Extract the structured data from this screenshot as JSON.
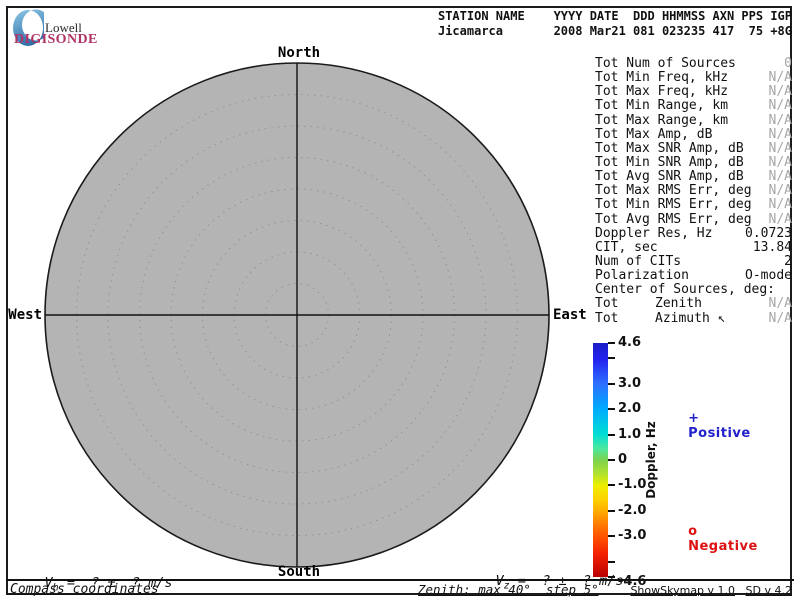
{
  "logo": {
    "top": "Lowell",
    "bottom": "DIGISONDE"
  },
  "header": {
    "line1": "STATION NAME    YYYY DATE  DDD HHMMSS AXN PPS IGP",
    "line2": "Jicamarca       2008 Mar21 081 023235 417  75 +8G"
  },
  "compass": {
    "north": "North",
    "east": "East",
    "south": "South",
    "west": "West"
  },
  "stats": {
    "rows": [
      {
        "label": "Tot Num of Sources",
        "value": "0",
        "na": true
      },
      {
        "label": "Tot Min Freq, kHz",
        "value": "N/A",
        "na": true
      },
      {
        "label": "Tot Max Freq, kHz",
        "value": "N/A",
        "na": true
      },
      {
        "label": "Tot Min Range, km",
        "value": "N/A",
        "na": true
      },
      {
        "label": "Tot Max Range, km",
        "value": "N/A",
        "na": true
      },
      {
        "label": "Tot Max Amp, dB",
        "value": "N/A",
        "na": true
      },
      {
        "label": "Tot Max SNR Amp, dB",
        "value": "N/A",
        "na": true
      },
      {
        "label": "Tot Min SNR Amp, dB",
        "value": "N/A",
        "na": true
      },
      {
        "label": "Tot Avg SNR Amp, dB",
        "value": "N/A",
        "na": true
      },
      {
        "label": "Tot Max RMS Err, deg",
        "value": "N/A",
        "na": true
      },
      {
        "label": "Tot Min RMS Err, deg",
        "value": "N/A",
        "na": true
      },
      {
        "label": "Tot Avg RMS Err, deg",
        "value": "N/A",
        "na": true
      },
      {
        "label": "Doppler Res, Hz",
        "value": "0.0723",
        "na": false
      },
      {
        "label": "CIT, sec",
        "value": "13.84",
        "na": false
      },
      {
        "label": "Num of CITs",
        "value": "2",
        "na": false
      },
      {
        "label": "Polarization",
        "value": "O-mode",
        "na": false
      },
      {
        "label": "Center of Sources, deg:",
        "value": "",
        "na": false
      },
      {
        "label": "Tot",
        "mid": "Zenith",
        "value": "N/A",
        "na": true
      },
      {
        "label": "Tot",
        "mid": "Azimuth ↖",
        "value": "N/A",
        "na": true
      }
    ]
  },
  "colorbar": {
    "title": "Doppler, Hz",
    "min": -4.6,
    "max": 4.6,
    "ticks": [
      {
        "v": 4.6,
        "label": "4.6"
      },
      {
        "v": 4.0,
        "label": ""
      },
      {
        "v": 3.0,
        "label": "3.0"
      },
      {
        "v": 2.0,
        "label": "2.0"
      },
      {
        "v": 1.0,
        "label": "1.0"
      },
      {
        "v": 0,
        "label": "0"
      },
      {
        "v": -1.0,
        "label": "-1.0"
      },
      {
        "v": -2.0,
        "label": "-2.0"
      },
      {
        "v": -3.0,
        "label": "-3.0"
      },
      {
        "v": -4.0,
        "label": ""
      },
      {
        "v": -4.6,
        "label": "-4.6"
      }
    ],
    "gradient": [
      {
        "p": 0,
        "c": "#1c1cc8"
      },
      {
        "p": 7,
        "c": "#2222ee"
      },
      {
        "p": 17,
        "c": "#2e6cff"
      },
      {
        "p": 28,
        "c": "#00aaff"
      },
      {
        "p": 39,
        "c": "#00ddd4"
      },
      {
        "p": 45,
        "c": "#4ce8a0"
      },
      {
        "p": 50,
        "c": "#7cd24e"
      },
      {
        "p": 56,
        "c": "#b2e22e"
      },
      {
        "p": 61,
        "c": "#eeee00"
      },
      {
        "p": 67,
        "c": "#ffd000"
      },
      {
        "p": 72,
        "c": "#ffaa00"
      },
      {
        "p": 78,
        "c": "#ff7700"
      },
      {
        "p": 83,
        "c": "#ff5100"
      },
      {
        "p": 90,
        "c": "#f42200"
      },
      {
        "p": 100,
        "c": "#b80000"
      }
    ],
    "positive": {
      "marker": "+",
      "label": "Positive",
      "color": "#2222cc"
    },
    "negative": {
      "marker": "o",
      "label": "Negative",
      "color": "#dd1111"
    }
  },
  "footer": {
    "vh": {
      "symbol": "V",
      "sub": "h",
      "rest": " =  ? ±  ? m/s"
    },
    "vz": {
      "symbol": "V",
      "sub": "z",
      "rest": " =  ? ±  ? m/s"
    },
    "coords_mode": "Compass coordinates",
    "zenith_info": "Zenith: max 40°  step 5°",
    "version_app": "ShowSkymap v 1.0",
    "version_sd": "SD v 4.2"
  },
  "colors": {
    "plot_bg": "#b4b4b4",
    "plot_outline": "#1a1a1a",
    "ring_dotted": "#8e8e8e",
    "na_text": "#a6a6a6",
    "digisonde_text": "#b03366",
    "crescent_light": "#8cc8e6",
    "crescent_dark": "#2f6ea8"
  },
  "chart_data": {
    "type": "scatter",
    "projection": "polar-skymap",
    "points": [],
    "num_sources": 0,
    "zenith_max_deg": 40,
    "zenith_step_deg": 5,
    "compass_labels": [
      "North",
      "East",
      "South",
      "West"
    ],
    "colorbar_label": "Doppler, Hz",
    "colorbar_range": [
      -4.6,
      4.6
    ],
    "legend": [
      "+ Positive",
      "o Negative"
    ]
  }
}
